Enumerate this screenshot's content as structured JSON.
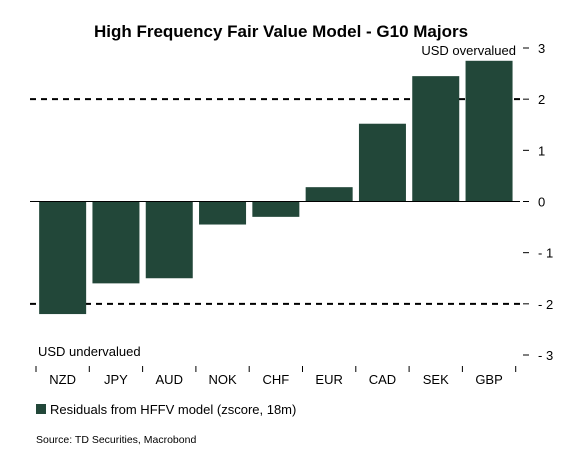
{
  "chart_data": {
    "type": "bar",
    "title": "High Frequency Fair Value Model - G10 Majors",
    "categories": [
      "NZD",
      "JPY",
      "AUD",
      "NOK",
      "CHF",
      "EUR",
      "CAD",
      "SEK",
      "GBP"
    ],
    "series": [
      {
        "name": "Residuals from HFFV model (zscore, 18m)",
        "values": [
          -2.2,
          -1.6,
          -1.5,
          -0.45,
          -0.3,
          0.28,
          1.52,
          2.45,
          2.75
        ]
      }
    ],
    "ylim": [
      -3,
      3
    ],
    "yticks": [
      "3",
      "2",
      "1",
      "0",
      "- 1",
      "- 2",
      "- 3"
    ],
    "ytick_values": [
      3,
      2,
      1,
      0,
      -1,
      -2,
      -3
    ],
    "reference_lines": [
      2,
      -2
    ],
    "annotations": {
      "top": "USD overvalued",
      "bottom": "USD undervalued"
    },
    "legend_position": "bottom-left",
    "grid": false,
    "bar_color": "#224739",
    "source": "Source: TD Securities, Macrobond"
  }
}
